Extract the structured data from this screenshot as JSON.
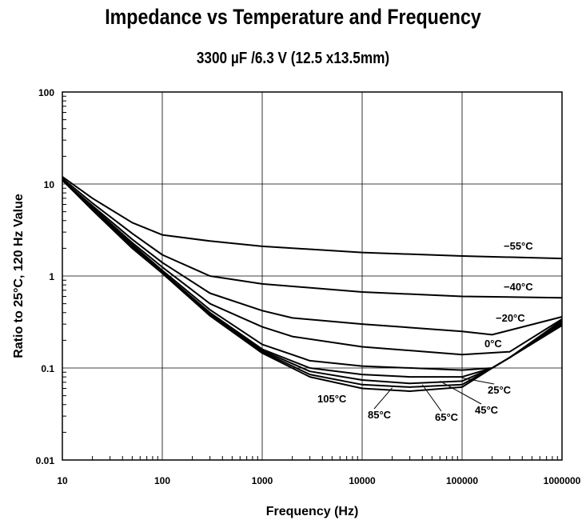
{
  "chart_data": {
    "type": "line",
    "title": "Impedance vs Temperature and Frequency",
    "subtitle": "3300 µF /6.3 V  (12.5 x13.5mm)",
    "xlabel": "Frequency (Hz)",
    "ylabel": "Ratio to 25°C, 120 Hz Value",
    "xscale": "log",
    "yscale": "log",
    "xlim": [
      10,
      1000000
    ],
    "ylim": [
      0.01,
      100
    ],
    "grid": true,
    "xticks": [
      "10",
      "100",
      "1000",
      "10000",
      "100000",
      "1000000"
    ],
    "yticks": [
      "0.01",
      "0.1",
      "1",
      "10",
      "100"
    ],
    "series": [
      {
        "name": "−55°C",
        "x": [
          10,
          20,
          50,
          100,
          300,
          1000,
          10000,
          100000,
          1000000
        ],
        "y": [
          12,
          7,
          3.8,
          2.8,
          2.4,
          2.1,
          1.8,
          1.65,
          1.55
        ]
      },
      {
        "name": "−40°C",
        "x": [
          10,
          20,
          50,
          100,
          300,
          1000,
          10000,
          100000,
          1000000
        ],
        "y": [
          11.5,
          6.2,
          2.9,
          1.7,
          1.0,
          0.82,
          0.67,
          0.6,
          0.58
        ]
      },
      {
        "name": "−20°C",
        "x": [
          10,
          20,
          50,
          100,
          300,
          1000,
          2000,
          10000,
          100000,
          200000,
          1000000
        ],
        "y": [
          11,
          5.8,
          2.5,
          1.4,
          0.65,
          0.42,
          0.35,
          0.3,
          0.25,
          0.23,
          0.36
        ]
      },
      {
        "name": "0°C",
        "x": [
          10,
          20,
          50,
          100,
          300,
          1000,
          2000,
          10000,
          100000,
          300000,
          1000000
        ],
        "y": [
          11,
          5.6,
          2.3,
          1.25,
          0.5,
          0.28,
          0.22,
          0.17,
          0.14,
          0.15,
          0.34
        ]
      },
      {
        "name": "25°C",
        "x": [
          10,
          20,
          50,
          100,
          300,
          1000,
          3000,
          10000,
          100000,
          200000,
          300000,
          1000000
        ],
        "y": [
          11,
          5.5,
          2.2,
          1.15,
          0.43,
          0.18,
          0.12,
          0.105,
          0.095,
          0.1,
          0.13,
          0.33
        ]
      },
      {
        "name": "45°C",
        "x": [
          10,
          20,
          50,
          100,
          300,
          1000,
          3000,
          10000,
          30000,
          100000,
          200000,
          300000,
          1000000
        ],
        "y": [
          11,
          5.4,
          2.1,
          1.1,
          0.4,
          0.16,
          0.1,
          0.085,
          0.08,
          0.08,
          0.1,
          0.13,
          0.32
        ]
      },
      {
        "name": "65°C",
        "x": [
          10,
          20,
          50,
          100,
          300,
          1000,
          3000,
          10000,
          30000,
          100000,
          200000,
          300000,
          1000000
        ],
        "y": [
          11,
          5.3,
          2.1,
          1.1,
          0.39,
          0.155,
          0.092,
          0.074,
          0.068,
          0.072,
          0.1,
          0.13,
          0.31
        ]
      },
      {
        "name": "85°C",
        "x": [
          10,
          20,
          50,
          100,
          300,
          1000,
          3000,
          10000,
          30000,
          100000,
          200000,
          300000,
          1000000
        ],
        "y": [
          11,
          5.3,
          2.05,
          1.08,
          0.38,
          0.15,
          0.085,
          0.066,
          0.062,
          0.066,
          0.1,
          0.13,
          0.3
        ]
      },
      {
        "name": "105°C",
        "x": [
          10,
          20,
          50,
          100,
          300,
          1000,
          3000,
          10000,
          30000,
          100000,
          200000,
          300000,
          1000000
        ],
        "y": [
          11,
          5.2,
          2.0,
          1.07,
          0.37,
          0.145,
          0.08,
          0.06,
          0.056,
          0.062,
          0.1,
          0.13,
          0.29
        ]
      }
    ],
    "labels": [
      "−55°C",
      "−40°C",
      "−20°C",
      "0°C",
      "25°C",
      "45°C",
      "65°C",
      "85°C",
      "105°C"
    ]
  }
}
